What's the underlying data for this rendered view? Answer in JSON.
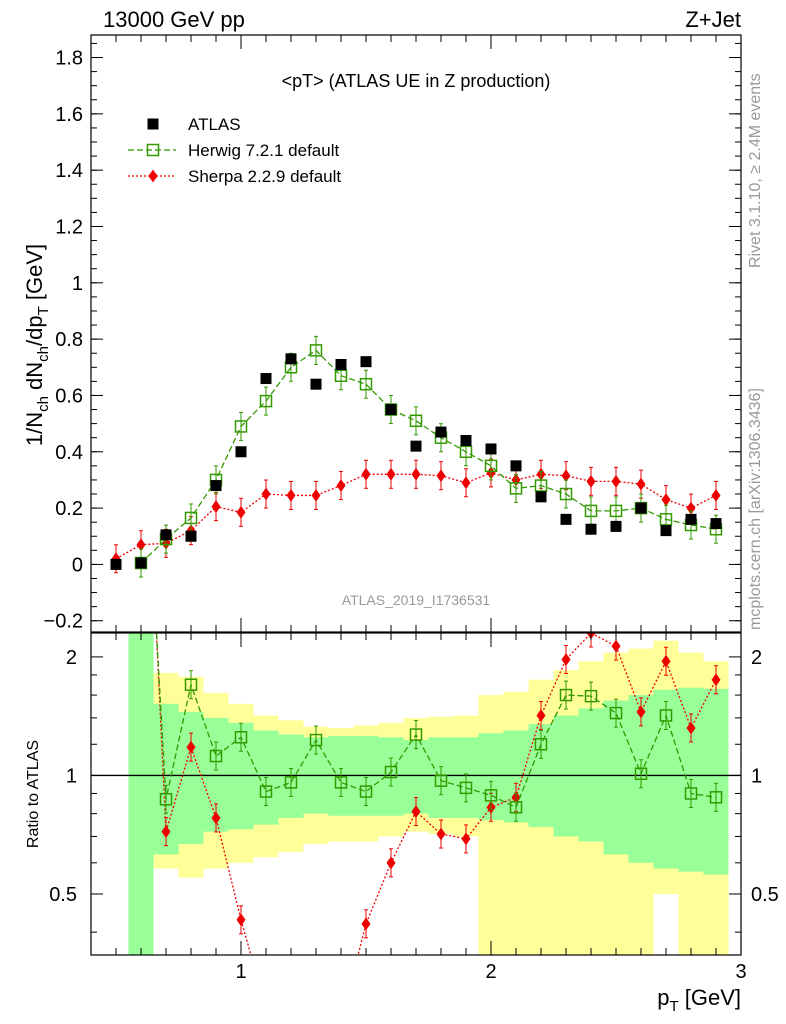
{
  "header": {
    "left": "13000 GeV pp",
    "right": "Z+Jet"
  },
  "side_text": {
    "rivet": "Rivet 3.1.10, ≥ 2.4M events",
    "mcplots": "mcplots.cern.ch [arXiv:1306.3436]"
  },
  "analysis_id": "ATLAS_2019_I1736531",
  "chart_data": [
    {
      "type": "scatter",
      "title": "<pT> (ATLAS UE in Z production)",
      "ylabel": "1/N_ch dN_ch/dp_T [GeV]",
      "xlabel": "p_T [GeV]",
      "xlim": [
        0.4,
        3.0
      ],
      "ylim": [
        -0.24,
        1.88
      ],
      "yticks": [
        -0.2,
        0,
        0.2,
        0.4,
        0.6,
        0.8,
        1,
        1.2,
        1.4,
        1.6,
        1.8
      ],
      "yticklabels": [
        "−0.2",
        "0",
        "0.2",
        "0.4",
        "0.6",
        "0.8",
        "1",
        "1.2",
        "1.4",
        "1.6",
        "1.8"
      ],
      "legend": {
        "placement": "top-left",
        "entries": [
          "ATLAS",
          "Herwig 7.2.1 default",
          "Sherpa 2.2.9 default"
        ]
      },
      "colors": {
        "atlas": "#000000",
        "herwig": "#339900",
        "sherpa": "#ee0000"
      },
      "series": [
        {
          "name": "ATLAS",
          "x": [
            0.5,
            0.6,
            0.7,
            0.8,
            0.9,
            1.0,
            1.1,
            1.2,
            1.3,
            1.4,
            1.5,
            1.6,
            1.7,
            1.8,
            1.9,
            2.0,
            2.1,
            2.2,
            2.3,
            2.4,
            2.5,
            2.6,
            2.7,
            2.8,
            2.9
          ],
          "y": [
            0.0,
            0.005,
            0.105,
            0.1,
            0.28,
            0.4,
            0.66,
            0.73,
            0.64,
            0.71,
            0.72,
            0.55,
            0.42,
            0.47,
            0.44,
            0.41,
            0.35,
            0.24,
            0.16,
            0.125,
            0.135,
            0.2,
            0.12,
            0.16,
            0.145
          ]
        },
        {
          "name": "Herwig 7.2.1 default",
          "x": [
            0.6,
            0.7,
            0.8,
            0.9,
            1.0,
            1.1,
            1.2,
            1.3,
            1.4,
            1.5,
            1.6,
            1.7,
            1.8,
            1.9,
            2.0,
            2.1,
            2.2,
            2.3,
            2.4,
            2.5,
            2.6,
            2.7,
            2.8,
            2.9
          ],
          "y": [
            0.005,
            0.09,
            0.165,
            0.3,
            0.49,
            0.58,
            0.7,
            0.76,
            0.67,
            0.64,
            0.55,
            0.51,
            0.45,
            0.4,
            0.35,
            0.27,
            0.28,
            0.25,
            0.19,
            0.19,
            0.2,
            0.16,
            0.14,
            0.125
          ]
        },
        {
          "name": "Sherpa 2.2.9 default",
          "x": [
            0.5,
            0.6,
            0.7,
            0.8,
            0.9,
            1.0,
            1.1,
            1.2,
            1.3,
            1.4,
            1.5,
            1.6,
            1.7,
            1.8,
            1.9,
            2.0,
            2.1,
            2.2,
            2.3,
            2.4,
            2.5,
            2.6,
            2.7,
            2.8,
            2.9
          ],
          "y": [
            0.02,
            0.07,
            0.075,
            0.12,
            0.205,
            0.185,
            0.25,
            0.245,
            0.245,
            0.28,
            0.32,
            0.32,
            0.32,
            0.315,
            0.29,
            0.325,
            0.3,
            0.32,
            0.315,
            0.295,
            0.295,
            0.285,
            0.23,
            0.2,
            0.245
          ]
        }
      ]
    },
    {
      "type": "scatter",
      "title": "",
      "ylabel": "Ratio to ATLAS",
      "xlabel": "p_T [GeV]",
      "xlim": [
        0.4,
        3.0
      ],
      "ylim": [
        0.35,
        2.3
      ],
      "log_y": true,
      "yticklabels": [
        "0.5",
        "1",
        "2"
      ],
      "xticklabels": [
        "1",
        "2",
        "3"
      ],
      "uncertainty_bands": {
        "bin_edges": [
          0.55,
          0.65,
          0.75,
          0.85,
          0.95,
          1.05,
          1.15,
          1.25,
          1.35,
          1.45,
          1.55,
          1.65,
          1.75,
          1.85,
          1.95,
          2.05,
          2.15,
          2.25,
          2.35,
          2.45,
          2.55,
          2.65,
          2.75,
          2.85,
          2.95
        ],
        "stat": {
          "low": [
            0.35,
            0.63,
            0.67,
            0.72,
            0.73,
            0.75,
            0.78,
            0.8,
            0.79,
            0.79,
            0.79,
            0.8,
            0.78,
            0.78,
            0.77,
            0.76,
            0.74,
            0.7,
            0.68,
            0.63,
            0.6,
            0.58,
            0.57,
            0.56
          ],
          "high": [
            2.3,
            1.52,
            1.45,
            1.4,
            1.36,
            1.3,
            1.27,
            1.25,
            1.26,
            1.26,
            1.25,
            1.23,
            1.25,
            1.25,
            1.28,
            1.3,
            1.35,
            1.42,
            1.48,
            1.55,
            1.6,
            1.65,
            1.67,
            1.66
          ]
        },
        "total": {
          "low": [
            0.35,
            0.58,
            0.55,
            0.58,
            0.6,
            0.62,
            0.64,
            0.67,
            0.68,
            0.68,
            0.7,
            0.72,
            0.71,
            0.7,
            0.35,
            0.35,
            0.35,
            0.35,
            0.35,
            0.35,
            0.35,
            0.5,
            0.35,
            0.35
          ],
          "high": [
            2.3,
            1.82,
            1.78,
            1.62,
            1.52,
            1.42,
            1.38,
            1.33,
            1.32,
            1.34,
            1.36,
            1.4,
            1.41,
            1.42,
            1.6,
            1.63,
            1.75,
            1.85,
            1.95,
            2.05,
            2.1,
            2.2,
            2.05,
            1.95
          ]
        }
      },
      "series": [
        {
          "name": "Herwig 7.2.1 default",
          "x": [
            0.7,
            0.8,
            0.9,
            1.0,
            1.1,
            1.2,
            1.3,
            1.4,
            1.5,
            1.6,
            1.7,
            1.8,
            1.9,
            2.0,
            2.1,
            2.2,
            2.3,
            2.4,
            2.5,
            2.6,
            2.7,
            2.8,
            2.9
          ],
          "y": [
            0.87,
            1.7,
            1.12,
            1.25,
            0.91,
            0.96,
            1.23,
            0.96,
            0.91,
            1.02,
            1.27,
            0.97,
            0.93,
            0.89,
            0.83,
            1.2,
            1.6,
            1.59,
            1.44,
            1.01,
            1.42,
            0.9,
            0.88
          ]
        },
        {
          "name": "Sherpa 2.2.9 default",
          "x": [
            0.7,
            0.8,
            0.9,
            1.0,
            1.5,
            1.6,
            1.7,
            1.8,
            1.9,
            2.0,
            2.1,
            2.2,
            2.3,
            2.4,
            2.5,
            2.6,
            2.7,
            2.8,
            2.9
          ],
          "y": [
            0.72,
            1.18,
            0.78,
            0.43,
            0.42,
            0.6,
            0.81,
            0.71,
            0.69,
            0.83,
            0.88,
            1.42,
            1.97,
            2.3,
            2.13,
            1.45,
            1.95,
            1.32,
            1.75
          ]
        }
      ]
    }
  ]
}
